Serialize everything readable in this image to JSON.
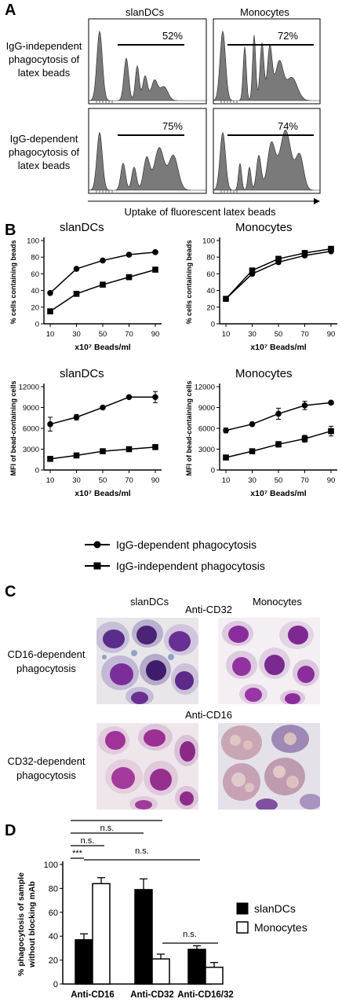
{
  "panelA": {
    "letter": "A",
    "col_headers": [
      "slanDCs",
      "Monocytes"
    ],
    "row_labels": [
      [
        "IgG-independent",
        "phagocytosis of",
        "latex beads"
      ],
      [
        "IgG-dependent",
        "phagocytosis of",
        "latex beads"
      ]
    ],
    "percents": [
      [
        "52%",
        "72%"
      ],
      [
        "75%",
        "74%"
      ]
    ],
    "xlabel": "Uptake of fluorescent latex beads"
  },
  "panelB": {
    "letter": "B",
    "legend": [
      "IgG-dependent phagocytosis",
      "IgG-independent phagocytosis"
    ]
  },
  "panelC": {
    "letter": "C",
    "col_headers": [
      "slanDCs",
      "Monocytes"
    ],
    "block_labels": [
      "Anti-CD32",
      "Anti-CD16"
    ],
    "row_labels": [
      [
        "CD16-dependent",
        "phagocytosis"
      ],
      [
        "CD32-dependent",
        "phagocytosis"
      ]
    ]
  },
  "panelD": {
    "letter": "D",
    "legend": [
      "slanDCs",
      "Monocytes"
    ]
  },
  "chart_data": [
    {
      "type": "line",
      "title": "slanDCs",
      "x": [
        10,
        30,
        50,
        70,
        90
      ],
      "xticks": [
        "10",
        "30",
        "50",
        "70",
        "90"
      ],
      "xlabel": "x10⁷ Beads/ml",
      "ylabel": "% cells containing beads",
      "ylim": [
        0,
        100
      ],
      "yticks": [
        0,
        20,
        40,
        60,
        80,
        100
      ],
      "series": [
        {
          "name": "IgG-dependent phagocytosis",
          "marker": "circle",
          "values": [
            37,
            66,
            76,
            83,
            86
          ],
          "err": [
            1,
            1,
            1,
            1,
            1
          ]
        },
        {
          "name": "IgG-independent phagocytosis",
          "marker": "square",
          "values": [
            15,
            36,
            47,
            56,
            65
          ],
          "err": [
            1,
            3,
            2,
            1,
            1
          ]
        }
      ]
    },
    {
      "type": "line",
      "title": "Monocytes",
      "x": [
        10,
        30,
        50,
        70,
        90
      ],
      "xticks": [
        "10",
        "30",
        "50",
        "70",
        "90"
      ],
      "xlabel": "x10⁷ Beads/ml",
      "ylabel": "% cells containing beads",
      "ylim": [
        0,
        100
      ],
      "yticks": [
        0,
        20,
        40,
        60,
        80,
        100
      ],
      "series": [
        {
          "name": "IgG-dependent phagocytosis",
          "marker": "circle",
          "values": [
            30,
            60,
            74,
            82,
            87
          ],
          "err": [
            1,
            2,
            2,
            2,
            1
          ]
        },
        {
          "name": "IgG-independent phagocytosis",
          "marker": "square",
          "values": [
            30,
            64,
            78,
            85,
            90
          ],
          "err": [
            1,
            3,
            2,
            1,
            1
          ]
        }
      ]
    },
    {
      "type": "line",
      "title": "slanDCs",
      "x": [
        10,
        30,
        50,
        70,
        90
      ],
      "xticks": [
        "10",
        "30",
        "50",
        "70",
        "90"
      ],
      "xlabel": "x10⁷ Beads/ml",
      "ylabel": "MFI of bead-containing cells",
      "ylim": [
        0,
        12000
      ],
      "yticks": [
        0,
        3000,
        6000,
        9000,
        12000
      ],
      "series": [
        {
          "name": "IgG-dependent phagocytosis",
          "marker": "circle",
          "values": [
            6600,
            7600,
            9000,
            10500,
            10500
          ],
          "err": [
            1000,
            400,
            150,
            150,
            800
          ]
        },
        {
          "name": "IgG-independent phagocytosis",
          "marker": "square",
          "values": [
            1600,
            2100,
            2700,
            3000,
            3300
          ],
          "err": [
            100,
            150,
            150,
            200,
            300
          ]
        }
      ]
    },
    {
      "type": "line",
      "title": "Monocytes",
      "x": [
        10,
        30,
        50,
        70,
        90
      ],
      "xticks": [
        "10",
        "30",
        "50",
        "70",
        "90"
      ],
      "xlabel": "x10⁷ Beads/ml",
      "ylabel": "MFI of bead-containing cells",
      "ylim": [
        0,
        12000
      ],
      "yticks": [
        0,
        3000,
        6000,
        9000,
        12000
      ],
      "series": [
        {
          "name": "IgG-dependent phagocytosis",
          "marker": "circle",
          "values": [
            5700,
            6600,
            8100,
            9300,
            9700
          ],
          "err": [
            350,
            150,
            800,
            600,
            100
          ]
        },
        {
          "name": "IgG-independent phagocytosis",
          "marker": "square",
          "values": [
            1800,
            2700,
            3700,
            4500,
            5600
          ],
          "err": [
            100,
            150,
            400,
            500,
            700
          ]
        }
      ]
    },
    {
      "type": "bar",
      "categories": [
        "Anti-CD16",
        "Anti-CD32",
        "Anti-CD16/32"
      ],
      "ylabel": "% phagocytosis of sample without blocking mAb",
      "ylim": [
        0,
        100
      ],
      "yticks": [
        0,
        20,
        40,
        60,
        80,
        100
      ],
      "series": [
        {
          "name": "slanDCs",
          "color": "#000000",
          "values": [
            37,
            79,
            29
          ],
          "err": [
            5,
            9,
            3
          ]
        },
        {
          "name": "Monocytes",
          "color": "#ffffff",
          "values": [
            84,
            21,
            14
          ],
          "err": [
            5,
            4,
            4
          ]
        }
      ],
      "significance": [
        "***",
        "n.s.",
        "n.s.",
        "***",
        "n.s.",
        "n.s."
      ]
    }
  ]
}
